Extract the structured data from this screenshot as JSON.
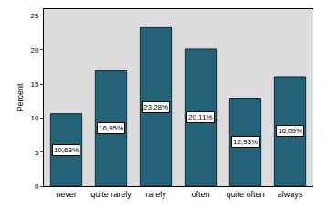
{
  "chart_data": {
    "type": "bar",
    "categories": [
      "never",
      "quite rarely",
      "rarely",
      "often",
      "quite often",
      "always"
    ],
    "values": [
      10.63,
      16.95,
      23.28,
      20.11,
      12.93,
      16.09
    ],
    "value_labels": [
      "10,63%",
      "16,95%",
      "23,28%",
      "20,11%",
      "12,93%",
      "16,09%"
    ],
    "data_labels": true,
    "y_label": "Percent",
    "color": "#236277",
    "ylim": [
      0,
      26
    ],
    "yticks": [
      0,
      5,
      10,
      15,
      20,
      25
    ],
    "grid": false
  }
}
